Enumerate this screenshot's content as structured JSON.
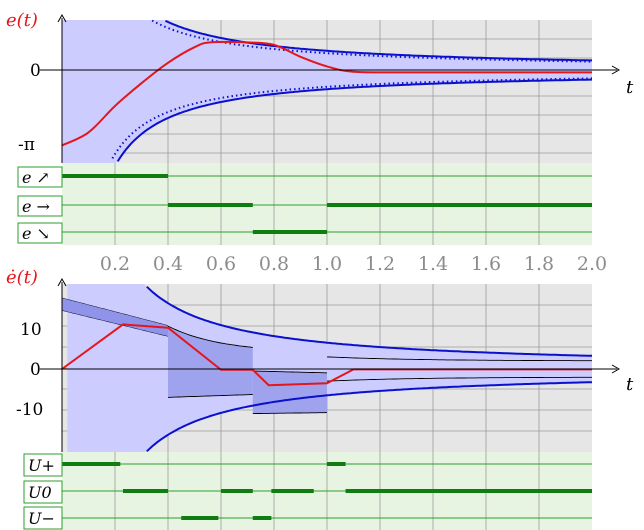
{
  "chart_data": [
    {
      "type": "line",
      "ylabel": "e(t)",
      "xlabel": "t",
      "xlim": [
        0,
        2.0
      ],
      "ylim": [
        -3.54,
        3.54
      ],
      "y_ticks": [
        {
          "value": 0,
          "label": "0"
        },
        {
          "value": -3.14159,
          "label": "-π"
        }
      ],
      "grid": true,
      "series": [
        {
          "role": "error",
          "color": "#e4161c",
          "points": [
            [
              0,
              -3.14
            ],
            [
              0.1,
              -2.6
            ],
            [
              0.2,
              -1.5
            ],
            [
              0.3,
              -0.55
            ],
            [
              0.4,
              0.3
            ],
            [
              0.5,
              0.95
            ],
            [
              0.56,
              1.15
            ],
            [
              0.7,
              1.15
            ],
            [
              0.8,
              1.05
            ],
            [
              0.9,
              0.55
            ],
            [
              1.0,
              0.15
            ],
            [
              1.1,
              -0.07
            ],
            [
              1.3,
              -0.1
            ],
            [
              1.6,
              -0.1
            ],
            [
              2.0,
              -0.1
            ]
          ]
        },
        {
          "role": "upper-bound",
          "color": "#0a10cc",
          "points": "k/t, k = 0.8"
        },
        {
          "role": "lower-bound",
          "color": "#0a10cc",
          "points": "-k/t, k = 0.8"
        },
        {
          "role": "upper-bound-dotted",
          "color": "#0a10cc",
          "points": "k2/t, k2 = 0.7"
        },
        {
          "role": "lower-bound-dotted",
          "color": "#0a10cc",
          "points": "-k2/t, k2 = 0.7"
        }
      ],
      "mode_bars": {
        "labels": [
          "e ↗",
          "e →",
          "e ↘"
        ],
        "intervals": [
          [
            [
              0,
              0.4
            ]
          ],
          [
            [
              0.4,
              0.72
            ],
            [
              1.0,
              2.0
            ]
          ],
          [
            [
              0.72,
              1.0
            ]
          ]
        ]
      }
    },
    {
      "type": "line",
      "ylabel": "ė(t)",
      "xlabel": "t",
      "xlim": [
        0,
        2.0
      ],
      "ylim": [
        -20,
        21
      ],
      "y_ticks": [
        {
          "value": 10,
          "label": "10"
        },
        {
          "value": 0,
          "label": "0"
        },
        {
          "value": -10,
          "label": "-10"
        }
      ],
      "x_ticks": [
        "0.2",
        "0.4",
        "0.6",
        "0.8",
        "1.0",
        "1.2",
        "1.4",
        "1.6",
        "1.8",
        "2.0"
      ],
      "grid": true,
      "series": [
        {
          "role": "derivative",
          "color": "#e4161c",
          "points": [
            [
              0,
              0
            ],
            [
              0.23,
              11
            ],
            [
              0.4,
              10.2
            ],
            [
              0.6,
              -0.2
            ],
            [
              0.72,
              -0.2
            ],
            [
              0.78,
              -4
            ],
            [
              1.0,
              -3.5
            ],
            [
              1.1,
              -0.1
            ],
            [
              2.0,
              -0.1
            ]
          ]
        }
      ],
      "mode_bars": {
        "labels": [
          "U+",
          "U0",
          "U−"
        ],
        "intervals": [
          [
            [
              0,
              0.22
            ],
            [
              1.0,
              1.07
            ]
          ],
          [
            [
              0.23,
              0.4
            ],
            [
              0.6,
              0.72
            ],
            [
              0.79,
              0.95
            ],
            [
              1.07,
              2.0
            ]
          ],
          [
            [
              0.45,
              0.59
            ],
            [
              0.72,
              0.79
            ]
          ]
        ]
      }
    }
  ],
  "colors": {
    "band": "#ccccff",
    "grid_bg": "#e6e6e6",
    "grid_line": "#9a9a9a",
    "bound": "#0a10cc",
    "error": "#e4161c",
    "strip_bg": "#e8f4e2",
    "strip_line": "#2e9e2e",
    "bar": "#0f7d0f",
    "label_border": "#2e9e2e"
  }
}
